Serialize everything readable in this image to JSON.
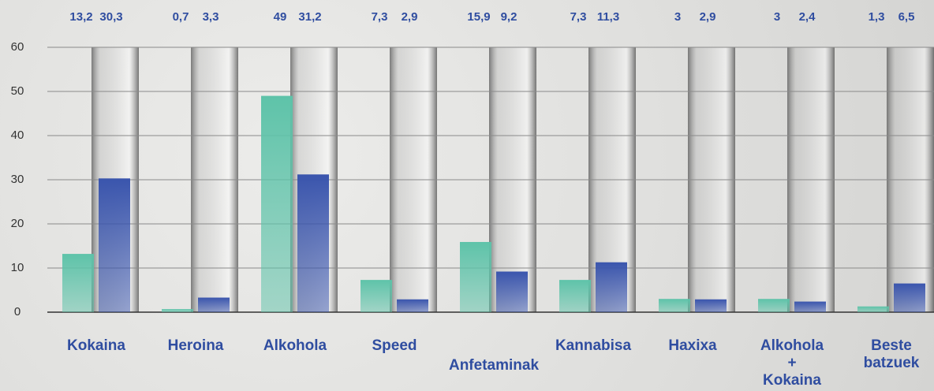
{
  "chart_data": {
    "type": "bar",
    "categories": [
      "Kokaina",
      "Heroina",
      "Alkohola",
      "Speed",
      "Anfetaminak",
      "Kannabisa",
      "Haxixa",
      "Alkohola + Kokaina",
      "Beste batzuek"
    ],
    "series": [
      {
        "color": "#5ec3a9",
        "values": [
          13.2,
          0.7,
          49,
          7.3,
          15.9,
          7.3,
          3,
          3,
          1.3
        ],
        "value_labels": [
          "13,2",
          "0,7",
          "49",
          "7,3",
          "15,9",
          "7,3",
          "3",
          "3",
          "1,3"
        ]
      },
      {
        "color": "#3a55ad",
        "values": [
          30.3,
          3.3,
          31.2,
          2.9,
          9.2,
          11.3,
          2.9,
          2.4,
          6.5
        ],
        "value_labels": [
          "30,3",
          "3,3",
          "31,2",
          "2,9",
          "9,2",
          "11,3",
          "2,9",
          "2,4",
          "6,5"
        ]
      }
    ],
    "ylim": [
      0,
      60
    ],
    "yticks": [
      0,
      10,
      20,
      30,
      40,
      50,
      60
    ],
    "grid": true
  }
}
